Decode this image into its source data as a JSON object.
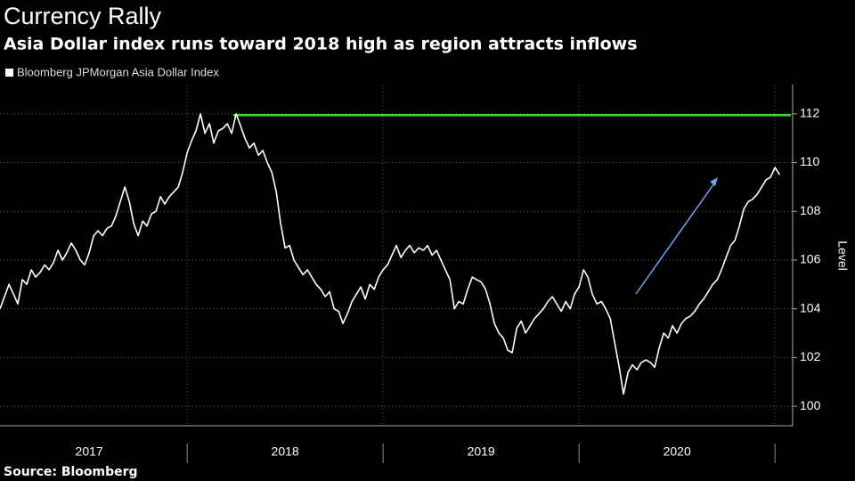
{
  "chart_data": {
    "type": "line",
    "title": "Currency Rally",
    "subtitle": "Asia Dollar index runs toward 2018 high as region attracts inflows",
    "y_axis_label": "Level",
    "source": "Source: Bloomberg",
    "xlim": [
      2017.045,
      2021.09
    ],
    "ylim": [
      99.2,
      113.2
    ],
    "yticks": [
      100,
      102,
      104,
      106,
      108,
      110,
      112
    ],
    "xticks": [
      {
        "value": 2017.5,
        "label": "2017"
      },
      {
        "value": 2018.5,
        "label": "2018"
      },
      {
        "value": 2019.5,
        "label": "2019"
      },
      {
        "value": 2020.5,
        "label": "2020"
      }
    ],
    "grid": true,
    "reference_line": {
      "value": 111.95,
      "x_start": 2018.236,
      "color": "#4ccf3f"
    },
    "arrow_color": "#6fa8ef",
    "x": [
      2017.045,
      2017.068,
      2017.091,
      2017.114,
      2017.136,
      2017.159,
      2017.182,
      2017.205,
      2017.227,
      2017.25,
      2017.273,
      2017.295,
      2017.318,
      2017.341,
      2017.364,
      2017.386,
      2017.409,
      2017.432,
      2017.455,
      2017.477,
      2017.5,
      2017.523,
      2017.545,
      2017.568,
      2017.591,
      2017.614,
      2017.636,
      2017.659,
      2017.682,
      2017.705,
      2017.727,
      2017.75,
      2017.773,
      2017.795,
      2017.818,
      2017.841,
      2017.864,
      2017.886,
      2017.909,
      2017.932,
      2017.955,
      2017.977,
      2018.0,
      2018.023,
      2018.045,
      2018.068,
      2018.091,
      2018.114,
      2018.136,
      2018.159,
      2018.182,
      2018.205,
      2018.227,
      2018.25,
      2018.273,
      2018.295,
      2018.318,
      2018.341,
      2018.364,
      2018.386,
      2018.409,
      2018.432,
      2018.455,
      2018.477,
      2018.5,
      2018.523,
      2018.545,
      2018.568,
      2018.591,
      2018.614,
      2018.636,
      2018.659,
      2018.682,
      2018.705,
      2018.727,
      2018.75,
      2018.773,
      2018.795,
      2018.818,
      2018.841,
      2018.864,
      2018.886,
      2018.909,
      2018.932,
      2018.955,
      2018.977,
      2019.0,
      2019.023,
      2019.045,
      2019.068,
      2019.091,
      2019.114,
      2019.136,
      2019.159,
      2019.182,
      2019.205,
      2019.227,
      2019.25,
      2019.273,
      2019.295,
      2019.318,
      2019.341,
      2019.364,
      2019.386,
      2019.409,
      2019.432,
      2019.455,
      2019.477,
      2019.5,
      2019.523,
      2019.545,
      2019.568,
      2019.591,
      2019.614,
      2019.636,
      2019.659,
      2019.682,
      2019.705,
      2019.727,
      2019.75,
      2019.773,
      2019.795,
      2019.818,
      2019.841,
      2019.864,
      2019.886,
      2019.909,
      2019.932,
      2019.955,
      2019.977,
      2020.0,
      2020.023,
      2020.045,
      2020.068,
      2020.091,
      2020.114,
      2020.136,
      2020.159,
      2020.182,
      2020.205,
      2020.227,
      2020.25,
      2020.273,
      2020.295,
      2020.318,
      2020.341,
      2020.364,
      2020.386,
      2020.409,
      2020.432,
      2020.455,
      2020.477,
      2020.5,
      2020.523,
      2020.545,
      2020.568,
      2020.591,
      2020.614,
      2020.636,
      2020.659,
      2020.682,
      2020.705,
      2020.727,
      2020.75,
      2020.773,
      2020.795,
      2020.818,
      2020.841,
      2020.864,
      2020.886,
      2020.909,
      2020.932,
      2020.955,
      2020.977,
      2021.0,
      2021.023
    ],
    "series": [
      {
        "name": "Bloomberg JPMorgan Asia Dollar Index",
        "color": "#ffffff",
        "values": [
          104.0,
          104.5,
          105.0,
          104.6,
          104.2,
          105.2,
          105.0,
          105.6,
          105.3,
          105.5,
          105.8,
          105.6,
          105.9,
          106.4,
          106.0,
          106.3,
          106.7,
          106.4,
          106.0,
          105.8,
          106.3,
          107.0,
          107.2,
          107.0,
          107.3,
          107.4,
          107.8,
          108.4,
          109.0,
          108.4,
          107.5,
          107.0,
          107.6,
          107.4,
          107.9,
          108.0,
          108.6,
          108.3,
          108.6,
          108.8,
          109.0,
          109.6,
          110.4,
          110.9,
          111.3,
          112.0,
          111.2,
          111.6,
          110.8,
          111.3,
          111.4,
          111.6,
          111.2,
          112.0,
          111.5,
          111.0,
          110.6,
          110.8,
          110.3,
          110.5,
          110.0,
          109.6,
          108.8,
          107.5,
          106.5,
          106.6,
          106.0,
          105.7,
          105.4,
          105.6,
          105.3,
          105.0,
          104.8,
          104.5,
          104.7,
          104.0,
          103.9,
          103.4,
          103.8,
          104.3,
          104.6,
          104.9,
          104.4,
          105.0,
          104.8,
          105.3,
          105.6,
          105.8,
          106.2,
          106.6,
          106.1,
          106.4,
          106.6,
          106.3,
          106.5,
          106.4,
          106.6,
          106.2,
          106.4,
          106.0,
          105.6,
          105.2,
          104.0,
          104.3,
          104.2,
          104.8,
          105.3,
          105.2,
          105.1,
          104.8,
          104.2,
          103.4,
          103.0,
          102.8,
          102.3,
          102.2,
          103.2,
          103.5,
          103.0,
          103.3,
          103.6,
          103.8,
          104.0,
          104.3,
          104.5,
          104.2,
          103.9,
          104.3,
          104.0,
          104.6,
          104.9,
          105.6,
          105.3,
          104.6,
          104.2,
          104.3,
          104.0,
          103.6,
          102.6,
          101.6,
          100.5,
          101.4,
          101.7,
          101.5,
          101.8,
          101.9,
          101.8,
          101.6,
          102.4,
          103.0,
          102.8,
          103.3,
          103.0,
          103.4,
          103.6,
          103.7,
          103.9,
          104.2,
          104.4,
          104.7,
          105.0,
          105.2,
          105.6,
          106.1,
          106.6,
          106.8,
          107.4,
          108.1,
          108.4,
          108.5,
          108.7,
          109.0,
          109.3,
          109.4,
          109.8,
          109.5
        ]
      }
    ]
  }
}
